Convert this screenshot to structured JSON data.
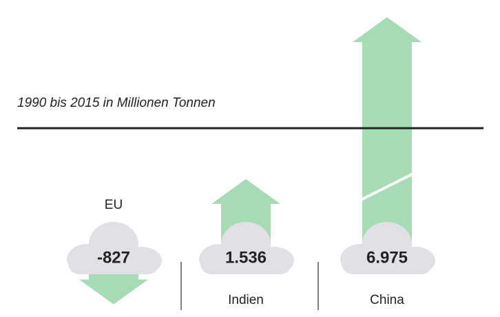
{
  "chart_data": {
    "type": "arrow",
    "subtitle": "1990 bis 2015 in Millionen Tonnen",
    "categories": [
      "EU",
      "Indien",
      "China"
    ],
    "values": [
      -827,
      1536,
      6975
    ],
    "value_labels": [
      "-827",
      "1.536",
      "6.975"
    ],
    "color": "#a6dbb6"
  }
}
